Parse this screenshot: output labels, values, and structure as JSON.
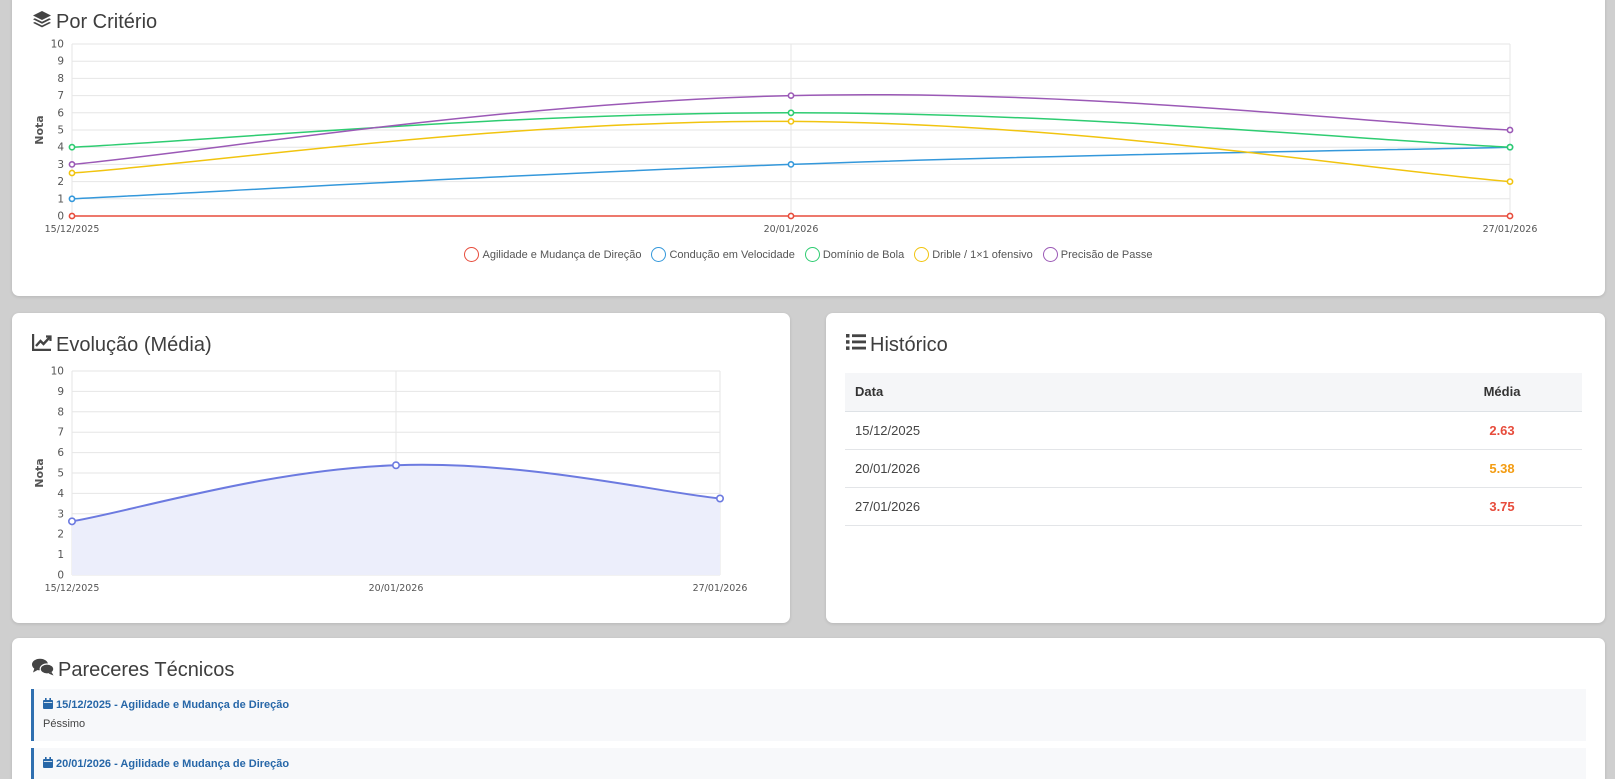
{
  "criteria_card": {
    "title": "Por Critério",
    "icon": "layers-icon"
  },
  "evolution_card": {
    "title": "Evolução (Média)",
    "icon": "line-chart-icon"
  },
  "history_card": {
    "title": "Histórico",
    "icon": "list-icon",
    "columns": [
      "Data",
      "Média"
    ],
    "rows": [
      {
        "date": "15/12/2025",
        "avg": "2.63",
        "color": "#e74c3c"
      },
      {
        "date": "20/01/2026",
        "avg": "5.38",
        "color": "#f39c12"
      },
      {
        "date": "27/01/2026",
        "avg": "3.75",
        "color": "#e74c3c"
      }
    ]
  },
  "opinions_card": {
    "title": "Pareceres Técnicos",
    "icon": "comments-icon",
    "items": [
      {
        "header": "15/12/2025 - Agilidade e Mudança de Direção",
        "text": "Péssimo"
      },
      {
        "header": "20/01/2026 - Agilidade e Mudança de Direção",
        "text": ""
      }
    ]
  },
  "chart_data": [
    {
      "type": "line",
      "title": "",
      "ylabel": "Nota",
      "xlabel": "",
      "x": [
        "15/12/2025",
        "20/01/2026",
        "27/01/2026"
      ],
      "ylim": [
        0,
        10
      ],
      "yticks": [
        "0",
        "1",
        "2",
        "3",
        "4",
        "5",
        "6",
        "7",
        "8",
        "9",
        "10"
      ],
      "grid": true,
      "legend": "bottom",
      "series": [
        {
          "name": "Agilidade e Mudança de Direção",
          "color": "#e74c3c",
          "values": [
            0,
            0,
            0
          ]
        },
        {
          "name": "Condução em Velocidade",
          "color": "#3498db",
          "values": [
            1,
            3,
            4
          ]
        },
        {
          "name": "Domínio de Bola",
          "color": "#2ecc71",
          "values": [
            4,
            6,
            4
          ]
        },
        {
          "name": "Drible / 1×1 ofensivo",
          "color": "#f1c40f",
          "values": [
            2.5,
            5.5,
            2
          ]
        },
        {
          "name": "Precisão de Passe",
          "color": "#9b59b6",
          "values": [
            3,
            7,
            5
          ]
        }
      ]
    },
    {
      "type": "area",
      "title": "",
      "ylabel": "Nota",
      "xlabel": "",
      "x": [
        "15/12/2025",
        "20/01/2026",
        "27/01/2026"
      ],
      "ylim": [
        0,
        10
      ],
      "yticks": [
        "0",
        "1",
        "2",
        "3",
        "4",
        "5",
        "6",
        "7",
        "8",
        "9",
        "10"
      ],
      "grid": true,
      "series": [
        {
          "color": "#6c7ae0",
          "fill": "#eceefb",
          "values": [
            2.63,
            5.38,
            3.75
          ]
        }
      ]
    }
  ]
}
